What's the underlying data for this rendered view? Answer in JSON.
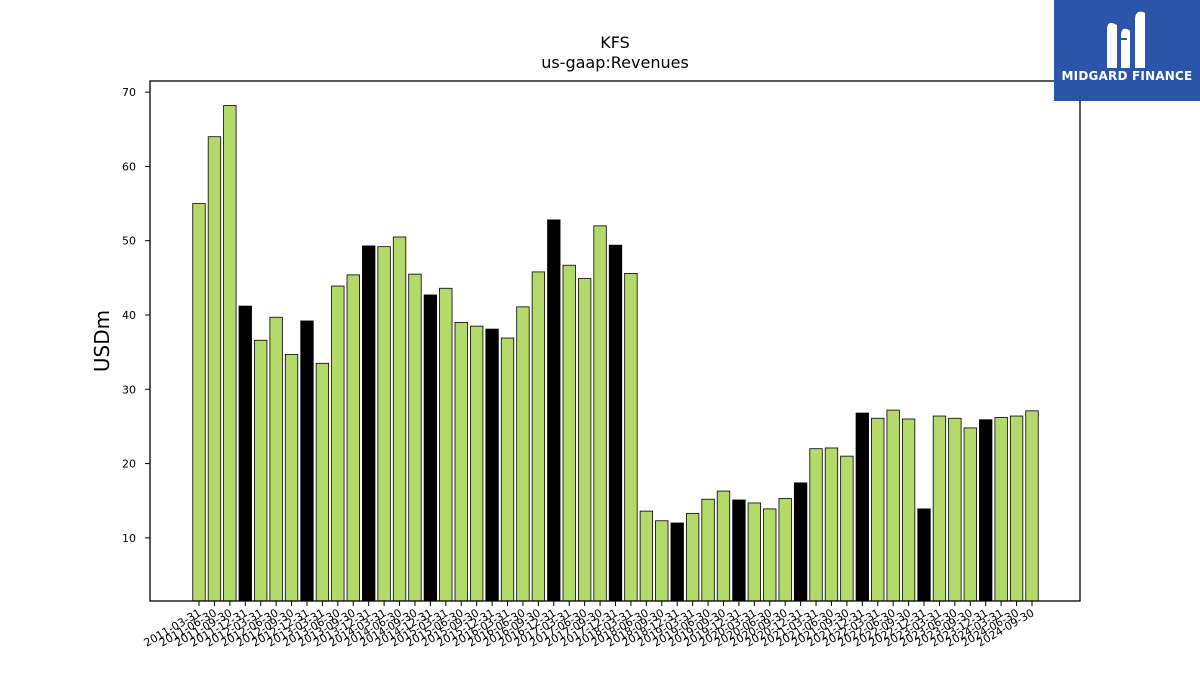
{
  "brand": {
    "name": "MIDGARD FINANCE",
    "logo_icon": "midgard-m-icon",
    "color": "#2b55a8"
  },
  "colors": {
    "regular": "#b3d96b",
    "fiscal_year_end": "#000000"
  },
  "chart_data": {
    "type": "bar",
    "title": "KFS",
    "subtitle": "us-gaap:Revenues",
    "xlabel": "",
    "ylabel": "USDm",
    "ylim": [
      1.5,
      71.5
    ],
    "yticks": [
      10,
      20,
      30,
      40,
      50,
      60,
      70
    ],
    "grid": false,
    "categories": [
      "2011-03-31",
      "2011-06-30",
      "2011-09-30",
      "2011-12-31",
      "2012-03-31",
      "2012-06-30",
      "2012-09-30",
      "2012-12-31",
      "2013-03-31",
      "2013-06-30",
      "2013-09-30",
      "2013-12-31",
      "2014-03-31",
      "2014-06-30",
      "2014-09-30",
      "2014-12-31",
      "2015-03-31",
      "2015-06-30",
      "2015-09-30",
      "2015-12-31",
      "2016-03-31",
      "2016-06-30",
      "2016-09-30",
      "2016-12-31",
      "2017-03-31",
      "2017-06-30",
      "2017-09-30",
      "2017-12-31",
      "2018-03-31",
      "2018-06-30",
      "2018-09-30",
      "2018-12-31",
      "2019-03-31",
      "2019-06-30",
      "2019-09-30",
      "2019-12-31",
      "2020-03-31",
      "2020-06-30",
      "2020-09-30",
      "2020-12-31",
      "2021-03-31",
      "2021-06-30",
      "2021-09-30",
      "2021-12-31",
      "2022-03-31",
      "2022-06-30",
      "2022-09-30",
      "2022-12-31",
      "2023-03-31",
      "2023-06-30",
      "2023-09-30",
      "2023-12-31",
      "2024-03-31",
      "2024-06-30",
      "2024-09-30"
    ],
    "values": [
      55.0,
      64.0,
      68.2,
      41.2,
      36.6,
      39.7,
      34.7,
      39.2,
      33.5,
      43.9,
      45.4,
      49.3,
      49.2,
      50.5,
      45.5,
      42.7,
      43.6,
      39.0,
      38.5,
      38.1,
      36.9,
      41.1,
      45.8,
      52.8,
      46.7,
      44.9,
      52.0,
      49.4,
      45.6,
      13.6,
      12.3,
      12.0,
      13.3,
      15.2,
      16.3,
      15.1,
      14.7,
      13.9,
      15.3,
      17.4,
      22.0,
      22.1,
      21.0,
      26.8,
      26.1,
      27.2,
      26.0,
      13.9,
      26.4,
      26.1,
      24.8,
      25.9,
      26.2,
      26.4,
      27.1
    ],
    "fiscal_year_end_flags": [
      0,
      0,
      0,
      1,
      0,
      0,
      0,
      1,
      0,
      0,
      0,
      1,
      0,
      0,
      0,
      1,
      0,
      0,
      0,
      1,
      0,
      0,
      0,
      1,
      0,
      0,
      0,
      1,
      0,
      0,
      0,
      1,
      0,
      0,
      0,
      1,
      0,
      0,
      0,
      1,
      0,
      0,
      0,
      1,
      0,
      0,
      0,
      1,
      0,
      0,
      0,
      1,
      0,
      0,
      0
    ]
  }
}
